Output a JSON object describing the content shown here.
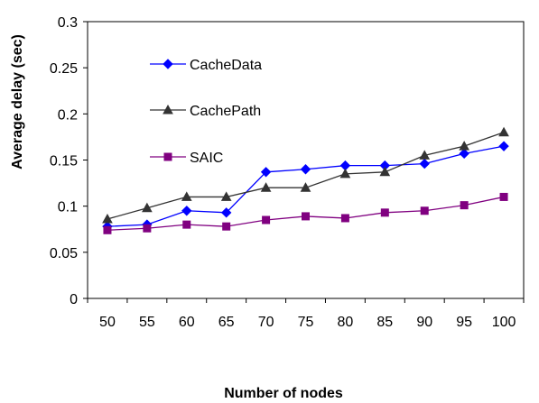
{
  "chart_data": {
    "type": "line",
    "title": "",
    "xlabel": "Number of nodes",
    "ylabel": "Average delay (sec)",
    "x": [
      50,
      55,
      60,
      65,
      70,
      75,
      80,
      85,
      90,
      95,
      100
    ],
    "x_tick_labels": [
      "50",
      "55",
      "60",
      "65",
      "70",
      "75",
      "80",
      "85",
      "90",
      "95",
      "100"
    ],
    "y_tick_labels": [
      "0",
      "0.05",
      "0.1",
      "0.15",
      "0.2",
      "0.25",
      "0.3"
    ],
    "ylim": [
      0,
      0.3
    ],
    "grid": false,
    "legend_position": "upper-left inside plot",
    "series": [
      {
        "name": "CacheData",
        "color": "#0000FF",
        "marker": "diamond",
        "values": [
          0.078,
          0.08,
          0.095,
          0.093,
          0.137,
          0.14,
          0.144,
          0.144,
          0.146,
          0.157,
          0.165
        ]
      },
      {
        "name": "CachePath",
        "color": "#333333",
        "marker": "triangle",
        "values": [
          0.086,
          0.098,
          0.11,
          0.11,
          0.12,
          0.12,
          0.135,
          0.137,
          0.155,
          0.165,
          0.18
        ]
      },
      {
        "name": "SAIC",
        "color": "#800080",
        "marker": "square",
        "values": [
          0.074,
          0.076,
          0.08,
          0.078,
          0.085,
          0.089,
          0.087,
          0.093,
          0.095,
          0.101,
          0.11
        ]
      }
    ]
  }
}
